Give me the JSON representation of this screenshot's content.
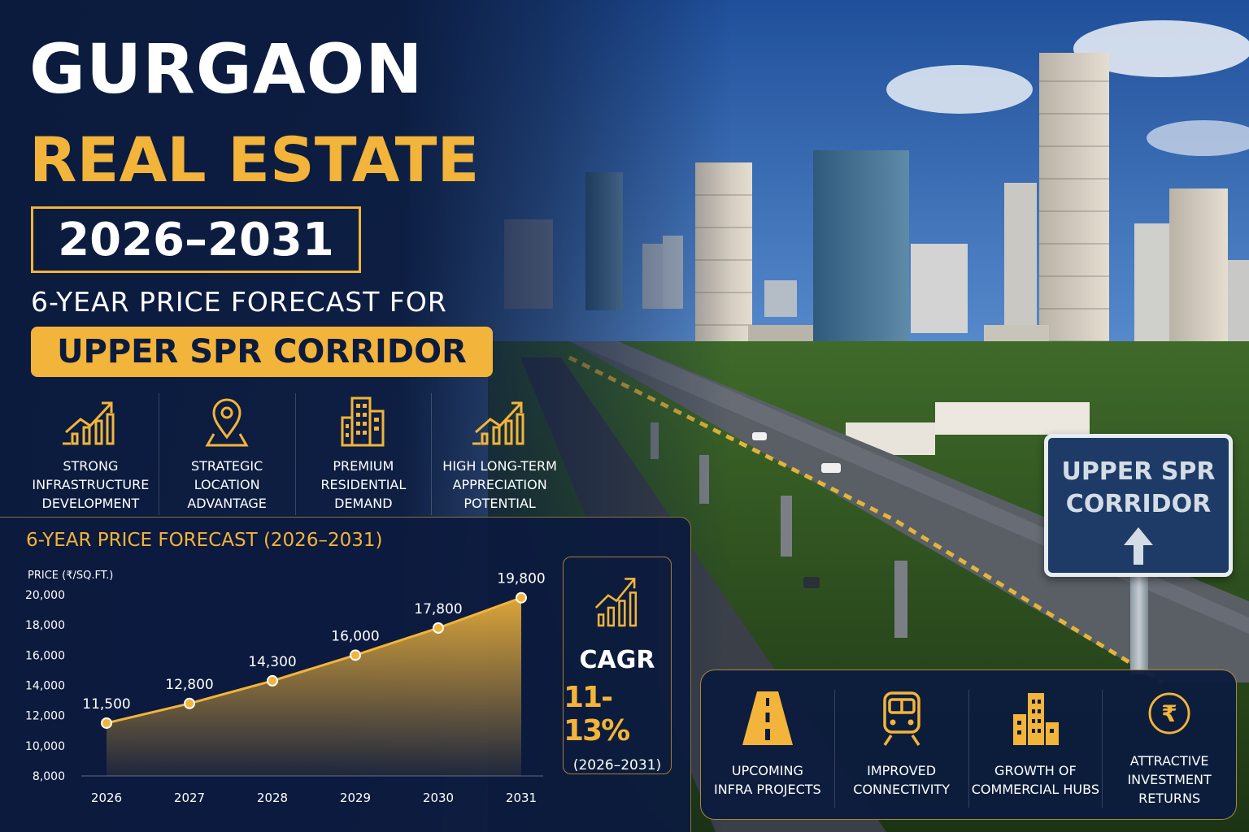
{
  "headline": {
    "line1": "GURGAON",
    "line2": "REAL ESTATE",
    "years": "2026–2031",
    "subtitle": "6-YEAR PRICE FORECAST FOR",
    "corridor": "UPPER SPR CORRIDOR"
  },
  "features": [
    {
      "icon": "growth-chart-icon",
      "label": "STRONG\nINFRASTRUCTURE\nDEVELOPMENT"
    },
    {
      "icon": "location-pin-icon",
      "label": "STRATEGIC\nLOCATION\nADVANTAGE"
    },
    {
      "icon": "building-icon",
      "label": "PREMIUM\nRESIDENTIAL\nDEMAND"
    },
    {
      "icon": "growth-chart-icon",
      "label": "HIGH LONG-TERM\nAPPRECIATION\nPOTENTIAL"
    }
  ],
  "chart_data": {
    "type": "area",
    "title": "6-YEAR PRICE FORECAST (2026–2031)",
    "ylabel": "PRICE (₹/SQ.FT.)",
    "xlabel": "",
    "x": [
      "2026",
      "2027",
      "2028",
      "2029",
      "2030",
      "2031"
    ],
    "values": [
      11500,
      12800,
      14300,
      16000,
      17800,
      19800
    ],
    "data_labels": [
      "11,500",
      "12,800",
      "14,300",
      "16,000",
      "17,800",
      "19,800"
    ],
    "y_ticks": [
      8000,
      10000,
      12000,
      14000,
      16000,
      18000,
      20000
    ],
    "y_tick_labels": [
      "8,000",
      "10,000",
      "12,000",
      "14,000",
      "16,000",
      "18,000",
      "20,000"
    ],
    "ylim": [
      8000,
      20000
    ],
    "grid": false,
    "legend": "none",
    "color": "#f2b43a"
  },
  "cagr": {
    "label": "CAGR",
    "value": "11-13%",
    "period": "(2026–2031)"
  },
  "sign": {
    "text": "UPPER SPR\nCORRIDOR"
  },
  "benefits": [
    {
      "icon": "road-icon",
      "label": "UPCOMING\nINFRA PROJECTS"
    },
    {
      "icon": "metro-train-icon",
      "label": "IMPROVED\nCONNECTIVITY"
    },
    {
      "icon": "commercial-buildings-icon",
      "label": "GROWTH OF\nCOMMERCIAL HUBS"
    },
    {
      "icon": "rupee-coin-icon",
      "label": "ATTRACTIVE\nINVESTMENT\nRETURNS"
    }
  ],
  "colors": {
    "navy": "#0c1b3d",
    "gold": "#f2b43a",
    "sign_blue": "#1d3b66"
  }
}
